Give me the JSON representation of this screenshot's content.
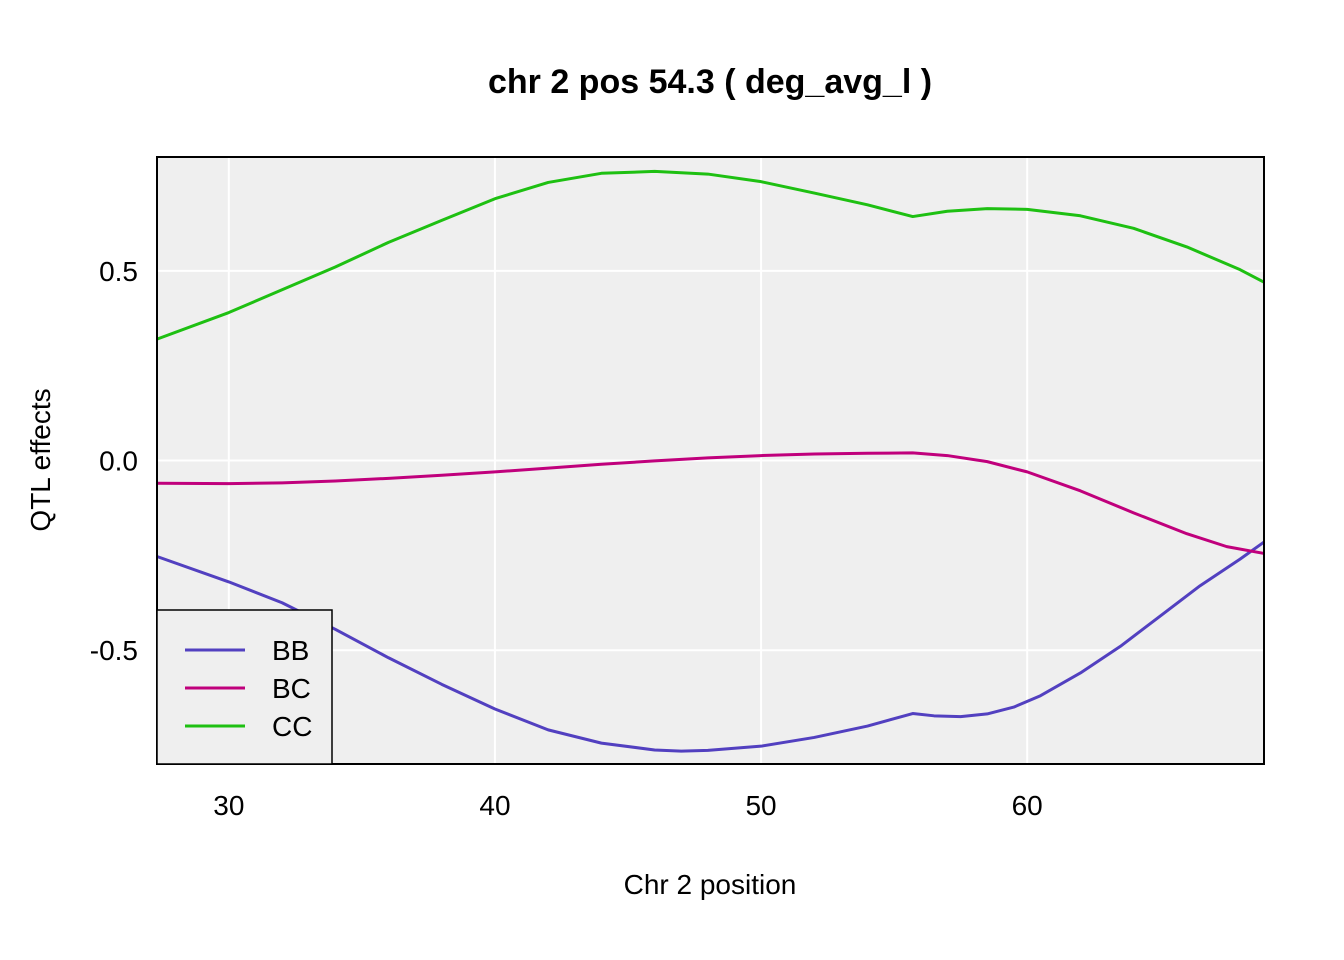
{
  "chart_data": {
    "type": "line",
    "title": "chr 2 pos 54.3 ( deg_avg_l )",
    "xlabel": "Chr 2 position",
    "ylabel": "QTL effects",
    "xlim": [
      27.3,
      68.9
    ],
    "ylim": [
      -0.8,
      0.8
    ],
    "xticks": [
      30,
      40,
      50,
      60
    ],
    "xtick_labels": [
      "30",
      "40",
      "50",
      "60"
    ],
    "yticks": [
      -0.5,
      0.0,
      0.5
    ],
    "ytick_labels": [
      "-0.5",
      "0.0",
      "0.5"
    ],
    "grid": true,
    "legend_position": "bottom-left",
    "series": [
      {
        "name": "BB",
        "color": "#5240c0",
        "points": [
          [
            27.3,
            -0.253
          ],
          [
            30,
            -0.32
          ],
          [
            32,
            -0.375
          ],
          [
            34,
            -0.445
          ],
          [
            36,
            -0.52
          ],
          [
            38,
            -0.59
          ],
          [
            40,
            -0.655
          ],
          [
            42,
            -0.71
          ],
          [
            44,
            -0.745
          ],
          [
            46,
            -0.763
          ],
          [
            47,
            -0.766
          ],
          [
            48,
            -0.764
          ],
          [
            50,
            -0.753
          ],
          [
            52,
            -0.73
          ],
          [
            54,
            -0.7
          ],
          [
            55.7,
            -0.667
          ],
          [
            56.5,
            -0.673
          ],
          [
            57.5,
            -0.675
          ],
          [
            58.5,
            -0.668
          ],
          [
            59.5,
            -0.65
          ],
          [
            60.5,
            -0.62
          ],
          [
            62,
            -0.56
          ],
          [
            63.5,
            -0.49
          ],
          [
            65,
            -0.41
          ],
          [
            66.5,
            -0.33
          ],
          [
            68,
            -0.26
          ],
          [
            68.9,
            -0.215
          ]
        ]
      },
      {
        "name": "BC",
        "color": "#c0007c",
        "points": [
          [
            27.3,
            -0.06
          ],
          [
            30,
            -0.061
          ],
          [
            32,
            -0.059
          ],
          [
            34,
            -0.054
          ],
          [
            36,
            -0.047
          ],
          [
            38,
            -0.039
          ],
          [
            40,
            -0.03
          ],
          [
            42,
            -0.02
          ],
          [
            44,
            -0.01
          ],
          [
            46,
            -0.001
          ],
          [
            48,
            0.007
          ],
          [
            50,
            0.013
          ],
          [
            52,
            0.017
          ],
          [
            54,
            0.019
          ],
          [
            55.7,
            0.02
          ],
          [
            57,
            0.013
          ],
          [
            58.5,
            -0.003
          ],
          [
            60,
            -0.03
          ],
          [
            62,
            -0.08
          ],
          [
            64,
            -0.138
          ],
          [
            66,
            -0.193
          ],
          [
            67.5,
            -0.227
          ],
          [
            68.9,
            -0.245
          ]
        ]
      },
      {
        "name": "CC",
        "color": "#1ec012",
        "points": [
          [
            27.3,
            0.32
          ],
          [
            30,
            0.39
          ],
          [
            32,
            0.45
          ],
          [
            34,
            0.51
          ],
          [
            36,
            0.575
          ],
          [
            38,
            0.633
          ],
          [
            40,
            0.69
          ],
          [
            42,
            0.733
          ],
          [
            44,
            0.757
          ],
          [
            46,
            0.762
          ],
          [
            48,
            0.755
          ],
          [
            50,
            0.735
          ],
          [
            52,
            0.705
          ],
          [
            54,
            0.674
          ],
          [
            55.7,
            0.643
          ],
          [
            57,
            0.657
          ],
          [
            58.5,
            0.664
          ],
          [
            60,
            0.662
          ],
          [
            62,
            0.645
          ],
          [
            64,
            0.612
          ],
          [
            66,
            0.563
          ],
          [
            68,
            0.503
          ],
          [
            68.9,
            0.47
          ]
        ]
      }
    ]
  }
}
